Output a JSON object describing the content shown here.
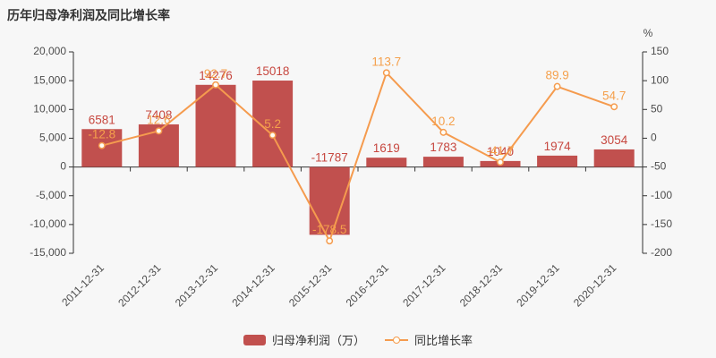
{
  "title": "历年归母净利润及同比增长率",
  "legend": {
    "bar_label": "归母净利润（万）",
    "line_label": "同比增长率"
  },
  "colors": {
    "background": "#f7f7f7",
    "bar": "#c1504e",
    "bar_label": "#c74840",
    "line": "#f59b4e",
    "line_label": "#f5a04c",
    "marker_fill": "#fffdf5",
    "axis": "#333333",
    "axis_text": "#4d4d4d",
    "title_text": "#333333"
  },
  "chart_data": {
    "type": "bar+line",
    "title": "历年归母净利润及同比增长率",
    "categories": [
      "2011-12-31",
      "2012-12-31",
      "2013-12-31",
      "2014-12-31",
      "2015-12-31",
      "2016-12-31",
      "2017-12-31",
      "2018-12-31",
      "2019-12-31",
      "2020-12-31"
    ],
    "series": [
      {
        "name": "归母净利润（万）",
        "type": "bar",
        "axis": "left",
        "values": [
          6581,
          7408,
          14276,
          15018,
          -11787,
          1619,
          1783,
          1040,
          1974,
          3054
        ]
      },
      {
        "name": "同比增长率",
        "type": "line",
        "axis": "right",
        "values": [
          -12.8,
          12.6,
          92.7,
          5.2,
          -178.5,
          113.7,
          10.2,
          -41.7,
          89.9,
          54.7
        ]
      }
    ],
    "left_axis": {
      "min": -15000,
      "max": 20000,
      "ticks": [
        20000,
        15000,
        10000,
        5000,
        0,
        -5000,
        -10000,
        -15000
      ]
    },
    "right_axis": {
      "min": -200,
      "max": 150,
      "ticks": [
        150,
        100,
        50,
        0,
        -50,
        -100,
        -150,
        -200
      ],
      "unit": "%"
    },
    "grid": false,
    "legend_position": "bottom"
  }
}
